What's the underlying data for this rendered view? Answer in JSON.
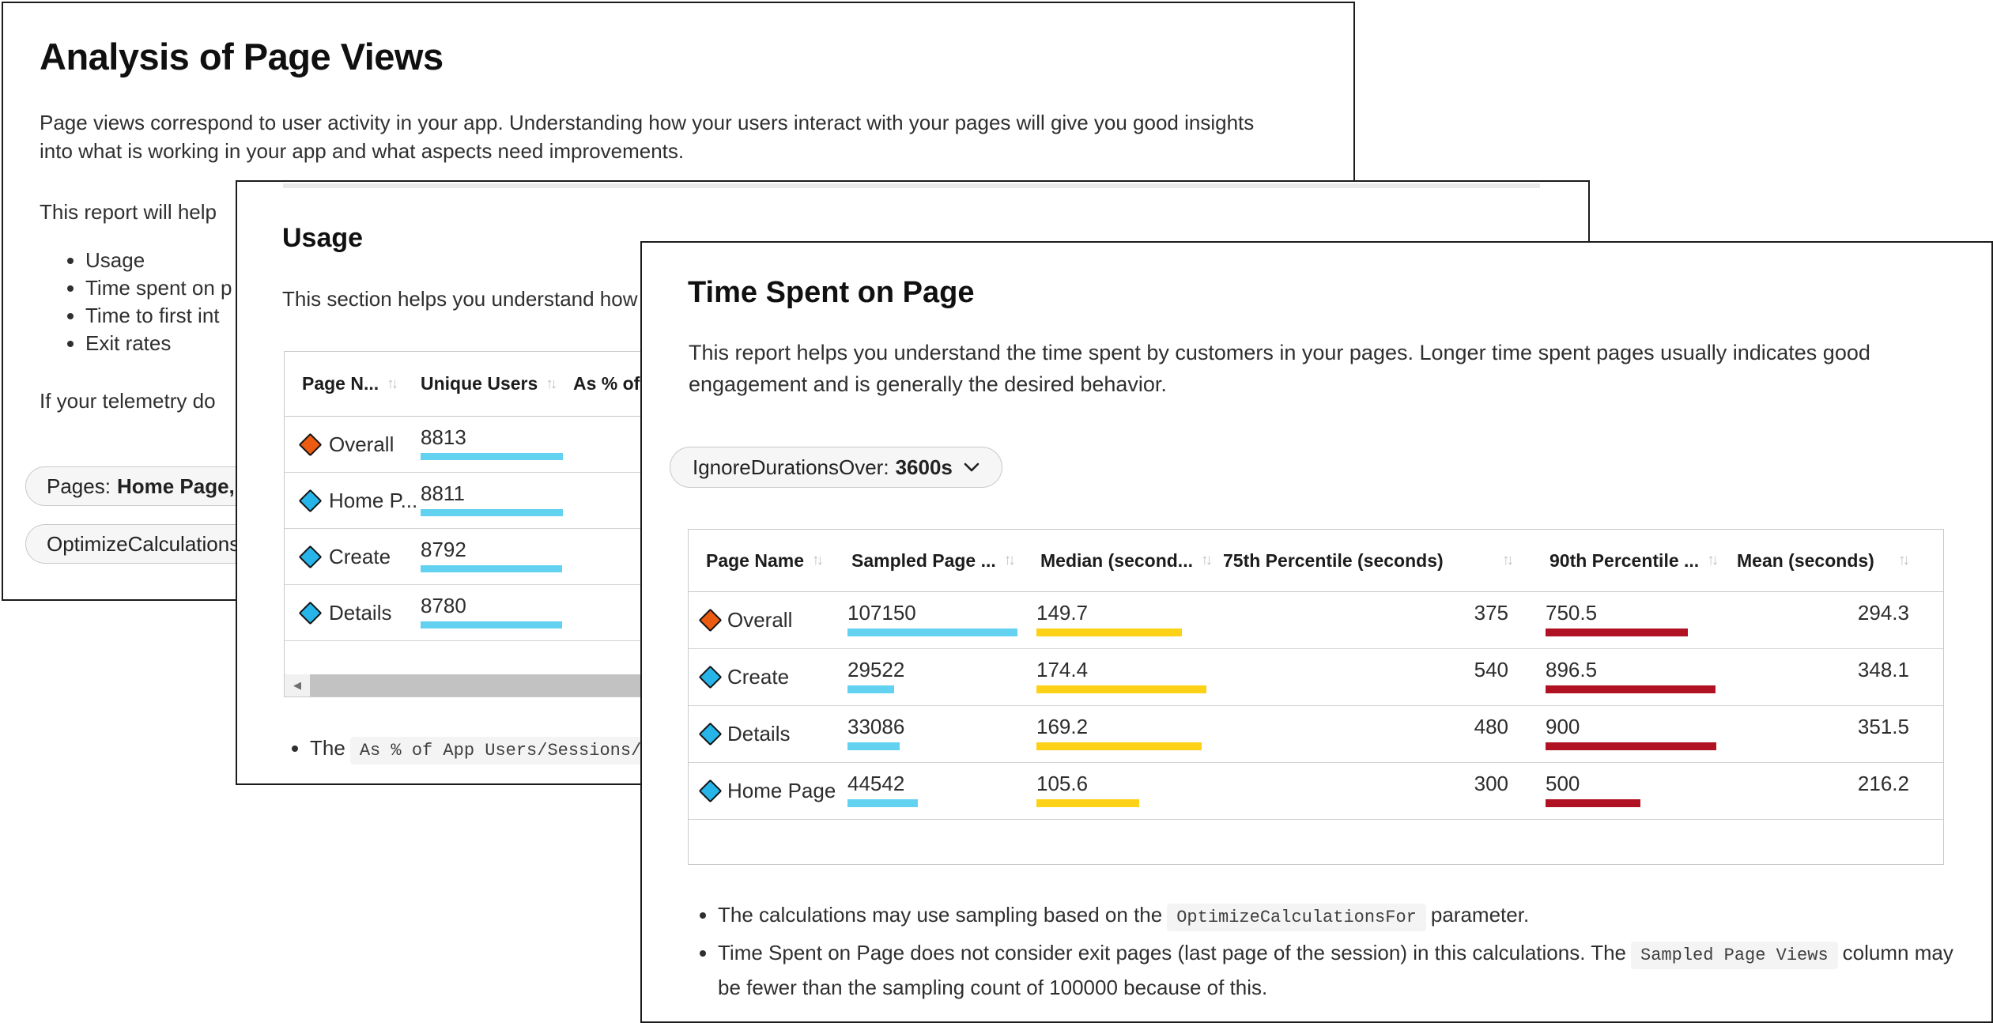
{
  "colors": {
    "bar_cyan": "#63D2F1",
    "bar_yellow": "#FCD116",
    "bar_red": "#B01223",
    "marker_orange": "#EB5C12",
    "marker_blue": "#27B4E9"
  },
  "icons": {
    "sort": "↑↓",
    "scroll_left_arrow": "◀"
  },
  "analysis_window": {
    "title": "Analysis of Page Views",
    "intro": "Page views correspond to user activity in your app. Understanding how your users interact with your pages will give you good insights into what is working in your app and what aspects need improvements.",
    "report_text": "This report will help",
    "bullets": [
      "Usage",
      "Time spent on p",
      "Time to first int",
      "Exit rates"
    ],
    "telemetry_text": "If your telemetry do",
    "pages_pill": {
      "label": "Pages:",
      "value": "Home Page, D"
    },
    "optimize_pill": {
      "label": "OptimizeCalculations"
    }
  },
  "usage_window": {
    "title": "Usage",
    "description": "This section helps you understand how",
    "table": {
      "headers": [
        {
          "label": "Page N..."
        },
        {
          "label": "Unique Users"
        },
        {
          "label": "As % of"
        }
      ],
      "rows": [
        {
          "name": "Overall",
          "marker": "orange",
          "unique_users": "8813",
          "bar_pct": 100
        },
        {
          "name": "Home P...",
          "marker": "blue",
          "unique_users": "8811",
          "bar_pct": 99.9
        },
        {
          "name": "Create",
          "marker": "blue",
          "unique_users": "8792",
          "bar_pct": 99.7
        },
        {
          "name": "Details",
          "marker": "blue",
          "unique_users": "8780",
          "bar_pct": 99.6
        }
      ]
    },
    "footnote": {
      "prefix": "The",
      "code": "As % of App Users/Sessions/V"
    }
  },
  "time_window": {
    "title": "Time Spent on Page",
    "description": "This report helps you understand the time spent by customers in your pages. Longer time spent pages usually indicates good engagement and is generally the desired behavior.",
    "filter_pill": {
      "label": "IgnoreDurationsOver:",
      "value": "3600s"
    },
    "table": {
      "headers": [
        {
          "label": "Page Name"
        },
        {
          "label": "Sampled Page ..."
        },
        {
          "label": "Median (second..."
        },
        {
          "label": "75th Percentile (seconds)"
        },
        {
          "label": "90th Percentile ..."
        },
        {
          "label": "Mean (seconds)"
        }
      ],
      "rows": [
        {
          "name": "Overall",
          "marker": "orange",
          "sampled": "107150",
          "sampled_pct": 100,
          "median": "149.7",
          "median_pct": 85.8,
          "p75": "375",
          "p90": "750.5",
          "p90_pct": 83.4,
          "mean": "294.3"
        },
        {
          "name": "Create",
          "marker": "blue",
          "sampled": "29522",
          "sampled_pct": 27.6,
          "median": "174.4",
          "median_pct": 100,
          "p75": "540",
          "p90": "896.5",
          "p90_pct": 99.6,
          "mean": "348.1"
        },
        {
          "name": "Details",
          "marker": "blue",
          "sampled": "33086",
          "sampled_pct": 30.9,
          "median": "169.2",
          "median_pct": 97.0,
          "p75": "480",
          "p90": "900",
          "p90_pct": 100,
          "mean": "351.5"
        },
        {
          "name": "Home Page",
          "marker": "blue",
          "sampled": "44542",
          "sampled_pct": 41.6,
          "median": "105.6",
          "median_pct": 60.6,
          "p75": "300",
          "p90": "500",
          "p90_pct": 55.6,
          "mean": "216.2"
        }
      ]
    },
    "footnotes": {
      "f1_prefix": "The calculations may use sampling based on the",
      "f1_code": "OptimizeCalculationsFor",
      "f1_suffix": "parameter.",
      "f2_prefix": "Time Spent on Page does not consider exit pages (last page of the session) in this calculations. The",
      "f2_code": "Sampled Page Views",
      "f2_suffix": "column may be fewer than the sampling count of 100000 because of this."
    }
  }
}
